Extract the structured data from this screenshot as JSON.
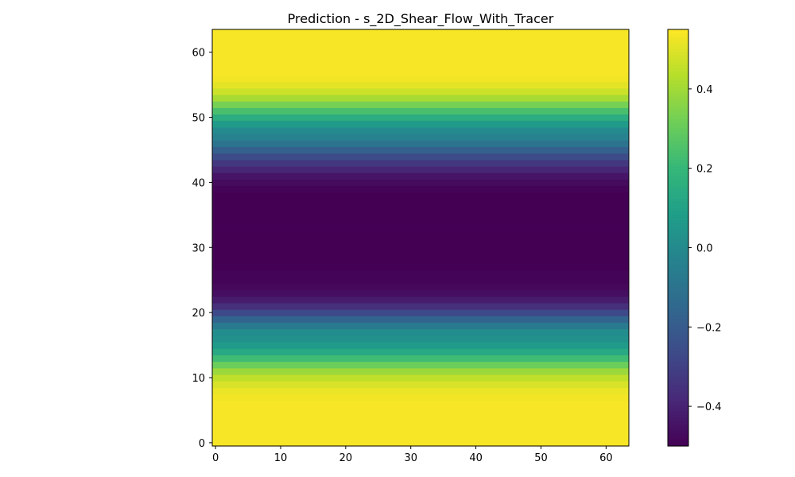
{
  "chart_data": {
    "type": "heatmap",
    "title": "Prediction - s_2D_Shear_Flow_With_Tracer",
    "xlabel": "",
    "ylabel": "",
    "grid": false,
    "xlim": [
      -0.5,
      63.5
    ],
    "ylim": [
      -0.5,
      63.5
    ],
    "x_ticks": [
      0,
      10,
      20,
      30,
      40,
      50,
      60
    ],
    "y_ticks": [
      0,
      10,
      20,
      30,
      40,
      50,
      60
    ],
    "x_tick_labels": [
      "0",
      "10",
      "20",
      "30",
      "40",
      "50",
      "60"
    ],
    "y_tick_labels": [
      "0",
      "10",
      "20",
      "30",
      "40",
      "50",
      "60"
    ],
    "colormap": "viridis",
    "colorbar": {
      "vmin": -0.5,
      "vmax": 0.55,
      "ticks": [
        -0.4,
        -0.2,
        0.0,
        0.2,
        0.4
      ],
      "tick_labels": [
        "−0.4",
        "−0.2",
        "0.0",
        "0.2",
        "0.4"
      ]
    },
    "grid_size": [
      64,
      64
    ],
    "row_profile": [
      0.54,
      0.54,
      0.54,
      0.54,
      0.54,
      0.54,
      0.54,
      0.53,
      0.52,
      0.49,
      0.45,
      0.39,
      0.31,
      0.22,
      0.13,
      0.07,
      0.03,
      0.01,
      -0.07,
      -0.16,
      -0.27,
      -0.36,
      -0.42,
      -0.46,
      -0.48,
      -0.49,
      -0.49,
      -0.5,
      -0.5,
      -0.5,
      -0.5,
      -0.5,
      -0.5,
      -0.5,
      -0.5,
      -0.5,
      -0.5,
      -0.5,
      -0.5,
      -0.49,
      -0.47,
      -0.44,
      -0.39,
      -0.33,
      -0.26,
      -0.18,
      -0.1,
      -0.04,
      0.0,
      0.07,
      0.15,
      0.24,
      0.33,
      0.41,
      0.47,
      0.51,
      0.53,
      0.54,
      0.54,
      0.54,
      0.54,
      0.54,
      0.54,
      0.54
    ]
  }
}
